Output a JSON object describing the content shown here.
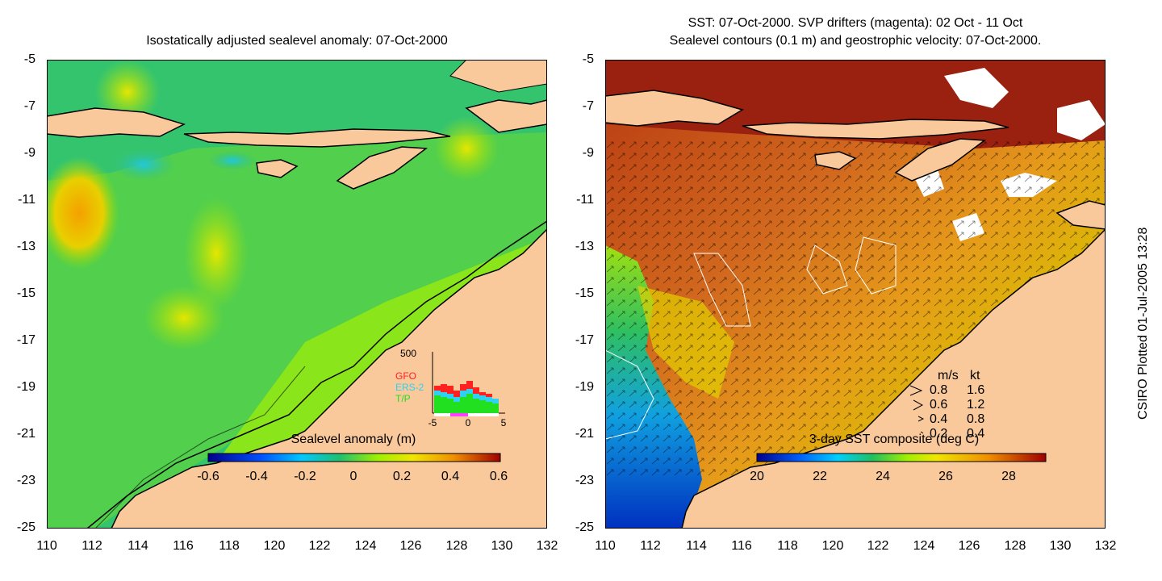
{
  "left_panel": {
    "title": "Isostatically adjusted sealevel anomaly: 07-Oct-2000",
    "colorbar": {
      "label": "Sealevel anomaly (m)",
      "ticks": [
        "-0.6",
        "-0.4",
        "-0.2",
        "0",
        "0.2",
        "0.4",
        "0.6"
      ]
    },
    "inset": {
      "y_max_label": "500",
      "x_ticks": [
        "-5",
        "0",
        "5"
      ],
      "legend": [
        {
          "label": "GFO",
          "color": "#ff2020"
        },
        {
          "label": "ERS-2",
          "color": "#30d0f0"
        },
        {
          "label": "T/P",
          "color": "#20e020"
        }
      ]
    }
  },
  "right_panel": {
    "title_line1": "SST: 07-Oct-2000. SVP drifters (magenta): 02 Oct - 11 Oct",
    "title_line2": "Sealevel contours (0.1 m) and geostrophic velocity: 07-Oct-2000.",
    "colorbar": {
      "label": "3-day SST composite (deg C)",
      "ticks": [
        "20",
        "22",
        "24",
        "26",
        "28"
      ]
    },
    "velocity_legend": {
      "header_ms": "m/s",
      "header_kt": "kt",
      "rows": [
        {
          "ms": "0.8",
          "kt": "1.6"
        },
        {
          "ms": "0.6",
          "kt": "1.2"
        },
        {
          "ms": "0.4",
          "kt": "0.8"
        },
        {
          "ms": "0.2",
          "kt": "0.4"
        }
      ]
    }
  },
  "axes": {
    "y_ticks": [
      "-5",
      "-7",
      "-9",
      "-11",
      "-13",
      "-15",
      "-17",
      "-19",
      "-21",
      "-23",
      "-25"
    ],
    "x_ticks": [
      "110",
      "112",
      "114",
      "116",
      "118",
      "120",
      "122",
      "124",
      "126",
      "128",
      "130",
      "132"
    ]
  },
  "credit": "CSIRO Plotted 01-Jul-2005 13:28",
  "colors": {
    "land": "#f9c99c",
    "sea_green": "#2ec06e",
    "sst_warm": "#c0501c"
  }
}
